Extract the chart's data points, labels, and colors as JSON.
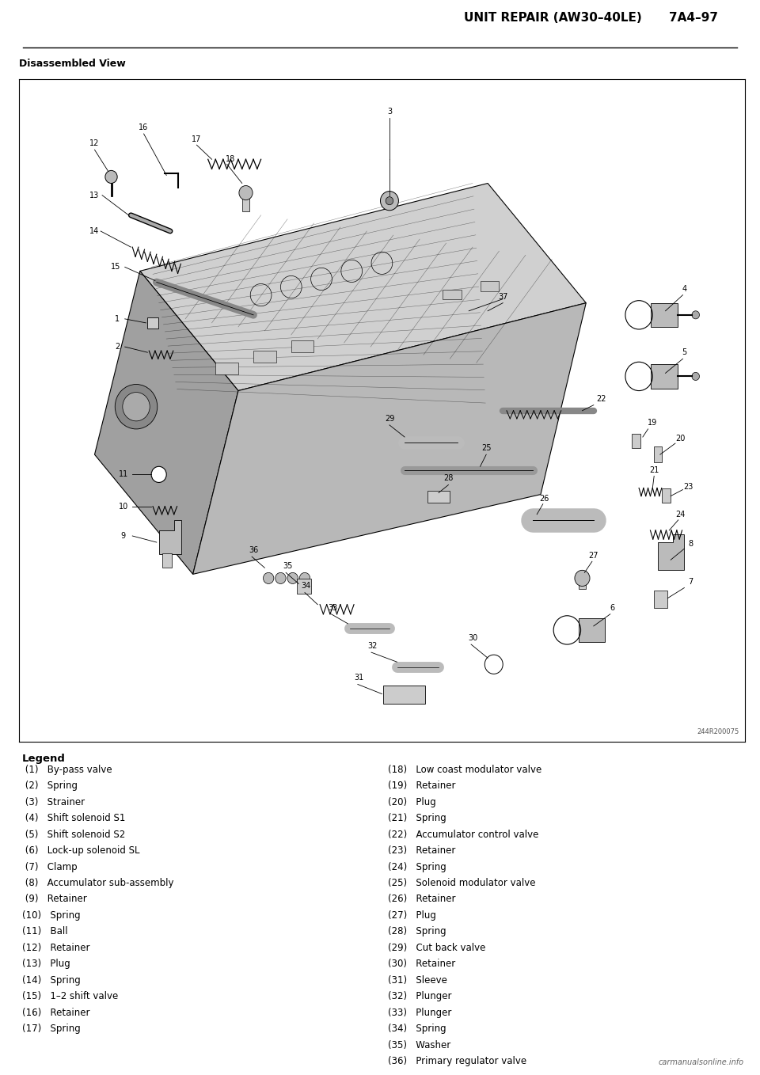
{
  "page_title": "UNIT REPAIR (AW30–40LE)     7A4–97",
  "page_title_left": "UNIT REPAIR (AW30–40LE)",
  "page_title_right": "7A4–97",
  "section_title": "Disassembled View",
  "diagram_ref": "244R200075",
  "bg_color": "#ffffff",
  "legend_title": "Legend",
  "legend_left": [
    " (1)   By-pass valve",
    " (2)   Spring",
    " (3)   Strainer",
    " (4)   Shift solenoid S1",
    " (5)   Shift solenoid S2",
    " (6)   Lock-up solenoid SL",
    " (7)   Clamp",
    " (8)   Accumulator sub-assembly",
    " (9)   Retainer",
    "(10)   Spring",
    "(11)   Ball",
    "(12)   Retainer",
    "(13)   Plug",
    "(14)   Spring",
    "(15)   1–2 shift valve",
    "(16)   Retainer",
    "(17)   Spring"
  ],
  "legend_right": [
    "(18)   Low coast modulator valve",
    "(19)   Retainer",
    "(20)   Plug",
    "(21)   Spring",
    "(22)   Accumulator control valve",
    "(23)   Retainer",
    "(24)   Spring",
    "(25)   Solenoid modulator valve",
    "(26)   Retainer",
    "(27)   Plug",
    "(28)   Spring",
    "(29)   Cut back valve",
    "(30)   Retainer",
    "(31)   Sleeve",
    "(32)   Plunger",
    "(33)   Plunger",
    "(34)   Spring",
    "(35)   Washer",
    "(36)   Primary regulator valve"
  ],
  "watermark": "carmanualsonline.info",
  "title_font_size": 11,
  "section_font_size": 9,
  "legend_font_size": 8.5,
  "legend_title_font_size": 9.5,
  "label_font_size": 7
}
